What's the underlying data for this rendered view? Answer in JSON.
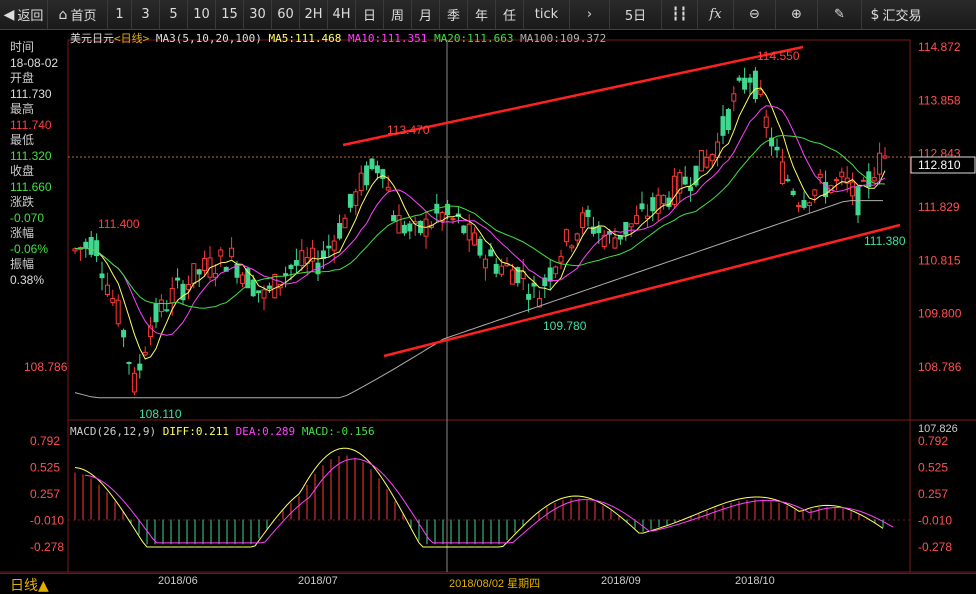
{
  "toolbar": {
    "back": "返回",
    "home": "首页",
    "periods": [
      "1",
      "3",
      "5",
      "10",
      "15",
      "30",
      "60",
      "2H",
      "4H",
      "日",
      "周",
      "月",
      "季",
      "年",
      "任",
      "tick"
    ],
    "five_day": "5日",
    "exchange": "汇交易"
  },
  "ma_legend": {
    "symbol": "美元日元",
    "period": "<日线>",
    "ma3": "MA3(5,10,20,100)",
    "ma5": "MA5:111.468",
    "ma10": "MA10:111.351",
    "ma20": "MA20:111.663",
    "ma100": "MA100:109.372"
  },
  "info": {
    "time_label": "时间",
    "time_value": "18-08-02",
    "open_label": "开盘",
    "open_value": "111.730",
    "high_label": "最高",
    "high_value": "111.740",
    "low_label": "最低",
    "low_value": "111.320",
    "close_label": "收盘",
    "close_value": "111.660",
    "change_label": "涨跌",
    "change_value": "-0.070",
    "pct_label": "涨幅",
    "pct_value": "-0.06%",
    "amp_label": "振幅",
    "amp_value": "0.38%"
  },
  "macd_legend": {
    "title": "MACD(26,12,9)",
    "diff": "DIFF:0.211",
    "dea": "DEA:0.289",
    "macd": "MACD:-0.156"
  },
  "price_axis_right": [
    "114.872",
    "113.858",
    "112.843",
    "111.829",
    "110.815",
    "109.800",
    "108.786",
    "107.826"
  ],
  "price_axis_left": [
    "108.786"
  ],
  "current_price": "112.810",
  "annotations": [
    "111.400",
    "113.470",
    "114.550",
    "109.780",
    "108.110",
    "111.380"
  ],
  "macd_axis": [
    "0.792",
    "0.525",
    "0.257",
    "-0.010",
    "-0.278"
  ],
  "x_labels": [
    "2018/06",
    "2018/07",
    "2018/08/02 星期四",
    "2018/09",
    "2018/10"
  ],
  "bottom": {
    "period_label": "日线▲"
  },
  "colors": {
    "up": "#ff3838",
    "down": "#40d890",
    "ma5": "#ffff60",
    "ma10": "#ff40ff",
    "ma20": "#40e040",
    "ma100": "#b0b0b0",
    "trend": "#ff2020"
  }
}
